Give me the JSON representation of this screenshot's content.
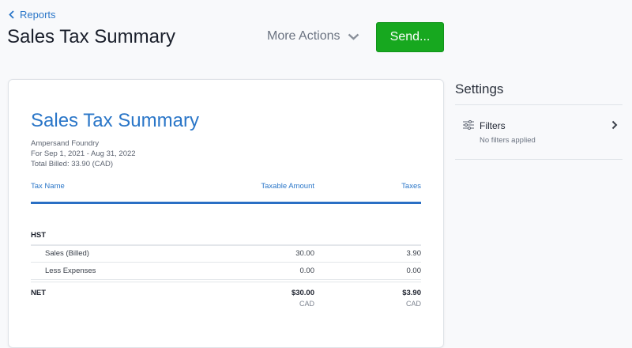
{
  "header": {
    "back_label": "Reports",
    "title": "Sales Tax Summary",
    "more_actions": "More Actions",
    "send": "Send..."
  },
  "report": {
    "title": "Sales Tax Summary",
    "company": "Ampersand Foundry",
    "period": "For Sep 1, 2021 - Aug 31, 2022",
    "total_billed": "Total Billed: 33.90 (CAD)",
    "columns": [
      "Tax Name",
      "Taxable Amount",
      "Taxes"
    ],
    "group": "HST",
    "rows": [
      {
        "name": "Sales (Billed)",
        "amount": "30.00",
        "taxes": "3.90"
      },
      {
        "name": "Less Expenses",
        "amount": "0.00",
        "taxes": "0.00"
      }
    ],
    "net": {
      "label": "NET",
      "amount": "$30.00",
      "taxes": "$3.90",
      "currency": "CAD"
    }
  },
  "settings": {
    "title": "Settings",
    "filters_label": "Filters",
    "filters_sub": "No filters applied"
  },
  "colors": {
    "accent": "#2a76c8",
    "send": "#17a81f"
  }
}
